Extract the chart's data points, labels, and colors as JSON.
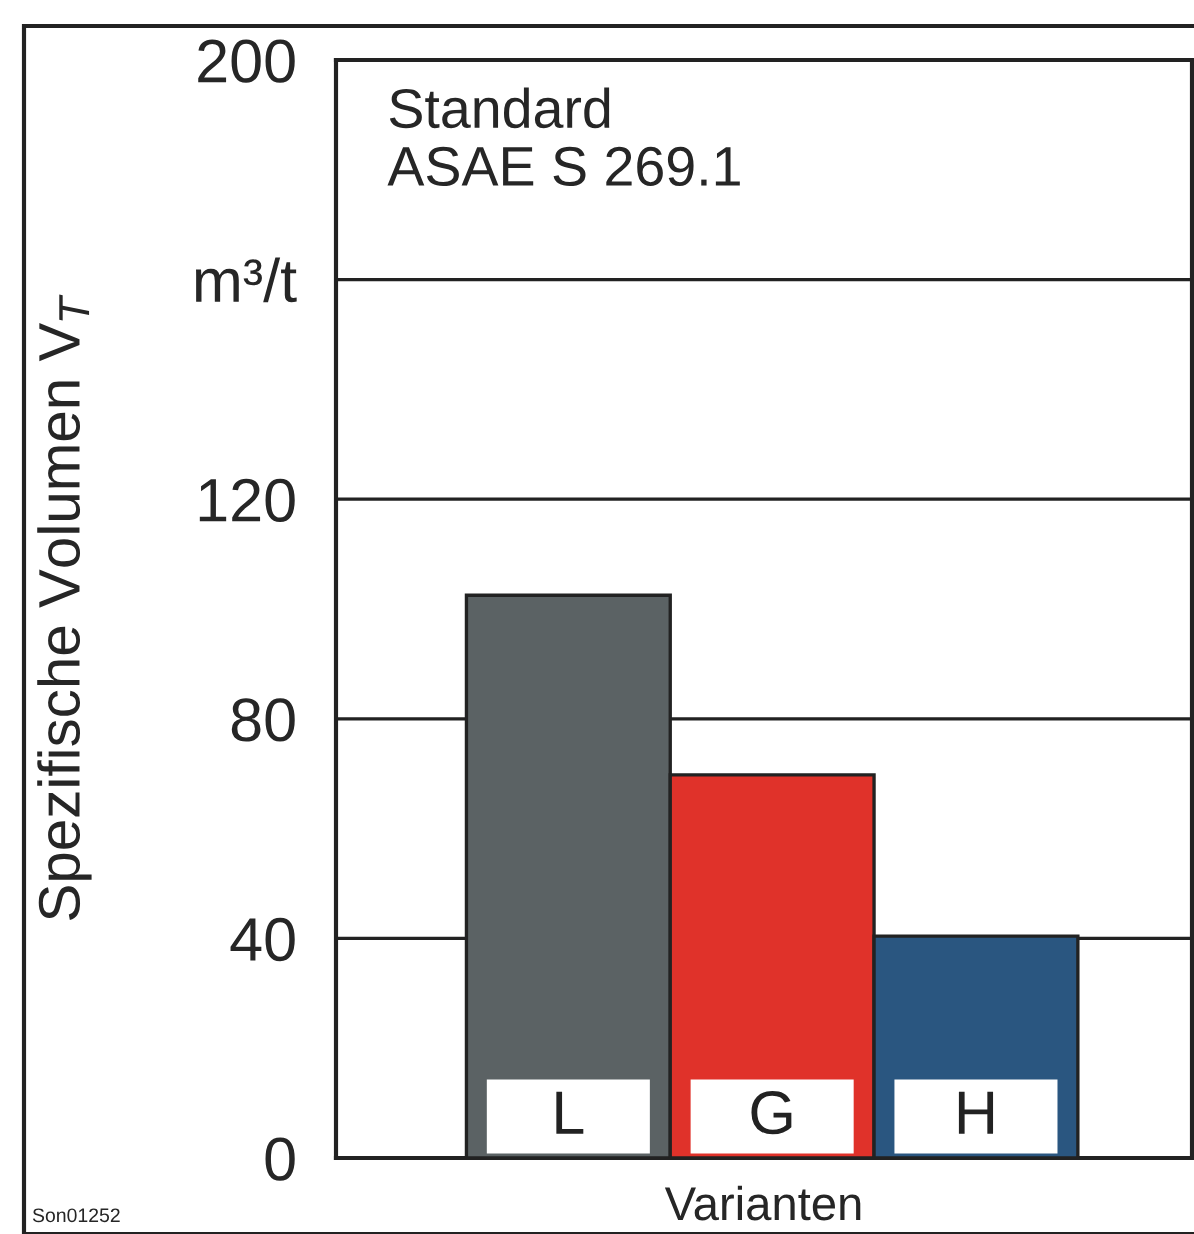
{
  "chart_data": {
    "type": "bar",
    "categories": [
      "L",
      "G",
      "H"
    ],
    "values": [
      102.5,
      69.8,
      40.4
    ],
    "colors": [
      "#5b6264",
      "#e0322a",
      "#2a5680"
    ],
    "ylabel": "Spezifische Volumen V$_{T}$",
    "xlabel": "Varianten",
    "ylim": [
      0,
      200
    ],
    "yticks": [
      0,
      40,
      80,
      120,
      {
        "value": 160,
        "label": "m³/t"
      },
      200
    ],
    "grid": "y",
    "annotations": [
      "Standard\nASAE S 269.1",
      "Son01252"
    ]
  }
}
